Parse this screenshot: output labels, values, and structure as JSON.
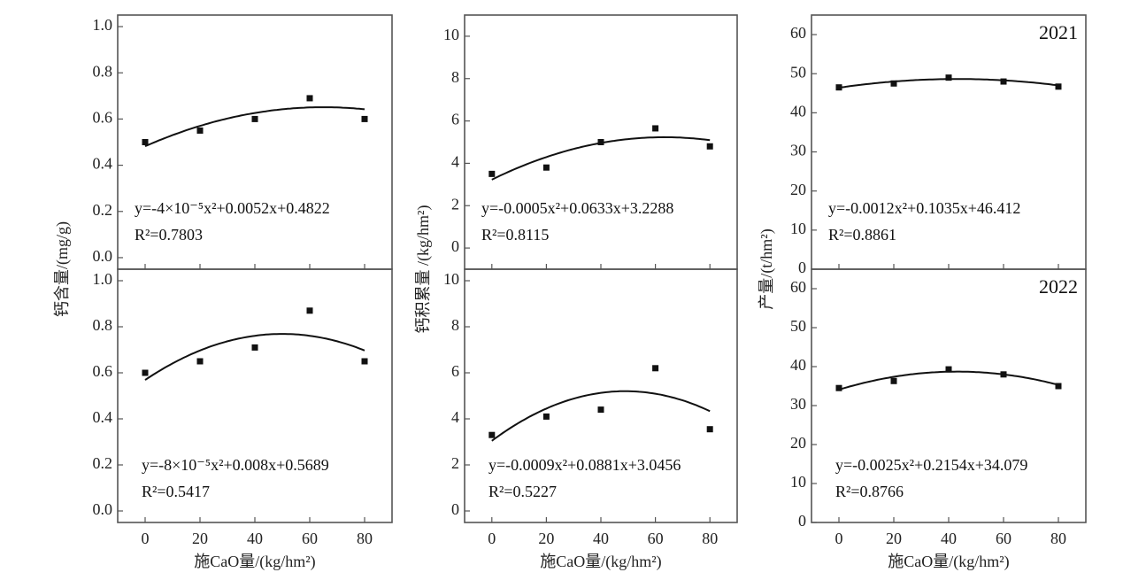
{
  "chart_data": {
    "type": "scatter",
    "xlabel": "施CaO量/(kg/hm²)",
    "x": [
      0,
      20,
      40,
      60,
      80
    ],
    "xticks": [
      "0",
      "20",
      "40",
      "60",
      "80"
    ],
    "xlim": [
      -10,
      90
    ],
    "columns": [
      {
        "ylabel": "钙含量/(mg/g)",
        "panels": [
          {
            "year": "",
            "ylim": [
              -0.05,
              1.05
            ],
            "yticks": [
              "0.0",
              "0.2",
              "0.4",
              "0.6",
              "0.8",
              "1.0"
            ],
            "ytick_values": [
              0,
              0.2,
              0.4,
              0.6,
              0.8,
              1.0
            ],
            "values": [
              0.5,
              0.55,
              0.6,
              0.69,
              0.6
            ],
            "fit": [
              -4e-05,
              0.0052,
              0.4822
            ],
            "equation": "y=-4×10⁻⁵x²+0.0052x+0.4822",
            "r2": "R²=0.7803"
          },
          {
            "year": "",
            "ylim": [
              -0.05,
              1.05
            ],
            "yticks": [
              "0.0",
              "0.2",
              "0.4",
              "0.6",
              "0.8",
              "1.0"
            ],
            "ytick_values": [
              0,
              0.2,
              0.4,
              0.6,
              0.8,
              1.0
            ],
            "values": [
              0.6,
              0.65,
              0.71,
              0.87,
              0.65
            ],
            "fit": [
              -8e-05,
              0.008,
              0.5689
            ],
            "equation": "y=-8×10⁻⁵x²+0.008x+0.5689",
            "r2": "R²=0.5417"
          }
        ]
      },
      {
        "ylabel": "钙积累量 /(kg/hm²)",
        "panels": [
          {
            "year": "",
            "ylim": [
              -1,
              11
            ],
            "yticks": [
              "0",
              "2",
              "4",
              "6",
              "8",
              "10"
            ],
            "ytick_values": [
              0,
              2,
              4,
              6,
              8,
              10
            ],
            "values": [
              3.5,
              3.8,
              5.0,
              5.65,
              4.8
            ],
            "fit": [
              -0.0005,
              0.0633,
              3.2288
            ],
            "equation": "y=-0.0005x²+0.0633x+3.2288",
            "r2": "R²=0.8115"
          },
          {
            "year": "",
            "ylim": [
              -0.5,
              10.5
            ],
            "yticks": [
              "0",
              "2",
              "4",
              "6",
              "8",
              "10"
            ],
            "ytick_values": [
              0,
              2,
              4,
              6,
              8,
              10
            ],
            "values": [
              3.3,
              4.1,
              4.4,
              6.2,
              3.55
            ],
            "fit": [
              -0.0009,
              0.0881,
              3.0456
            ],
            "equation": "y=-0.0009x²+0.0881x+3.0456",
            "r2": "R²=0.5227"
          }
        ]
      },
      {
        "ylabel": "产量/(t/hm²)",
        "panels": [
          {
            "year": "2021",
            "ylim": [
              0,
              65
            ],
            "yticks": [
              "0",
              "10",
              "20",
              "30",
              "40",
              "50",
              "60"
            ],
            "ytick_values": [
              0,
              10,
              20,
              30,
              40,
              50,
              60
            ],
            "values": [
              46.5,
              47.5,
              49.0,
              48.0,
              46.7
            ],
            "fit": [
              -0.0012,
              0.1035,
              46.412
            ],
            "equation": "y=-0.0012x²+0.1035x+46.412",
            "r2": "R²=0.8861"
          },
          {
            "year": "2022",
            "ylim": [
              0,
              65
            ],
            "yticks": [
              "0",
              "10",
              "20",
              "30",
              "40",
              "50",
              "60"
            ],
            "ytick_values": [
              0,
              10,
              20,
              30,
              40,
              50,
              60
            ],
            "values": [
              34.5,
              36.3,
              39.3,
              38.0,
              35.0
            ],
            "fit": [
              -0.0025,
              0.2154,
              34.079
            ],
            "equation": "y=-0.0025x²+0.2154x+34.079",
            "r2": "R²=0.8766"
          }
        ]
      }
    ]
  }
}
